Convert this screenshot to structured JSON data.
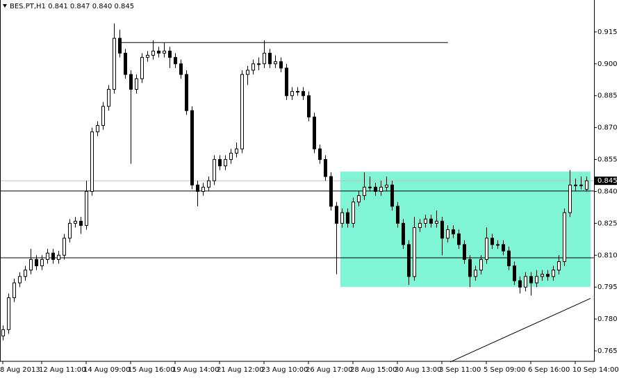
{
  "chart_data": {
    "type": "candlestick",
    "title": "BES.PT,H1  0.841 0.847 0.840 0.845",
    "ylim": [
      0.7601,
      0.93
    ],
    "yticks": [
      0.765,
      {
        "value": 0.78,
        "label": "0.780"
      },
      0.795,
      {
        "value": 0.81,
        "label": "0.810"
      },
      0.825,
      {
        "value": 0.84,
        "label": "0.840"
      },
      0.855,
      {
        "value": 0.87,
        "label": "0.870"
      },
      0.885,
      {
        "value": 0.9,
        "label": "0.900"
      },
      0.915
    ],
    "xlim": [
      -0.5,
      106.375
    ],
    "xticks": [
      {
        "value": 0,
        "label": "8 Aug 2013"
      },
      {
        "value": 7,
        "label": "12 Aug 11:00"
      },
      {
        "value": 15,
        "label": "14 Aug 09:00"
      },
      {
        "value": 23,
        "label": "15 Aug 16:00"
      },
      {
        "value": 31,
        "label": "19 Aug 14:00"
      },
      {
        "value": 39,
        "label": "21 Aug 12:00"
      },
      {
        "value": 47,
        "label": "23 Aug 10:00"
      },
      {
        "value": 55,
        "label": "26 Aug 17:00"
      },
      {
        "value": 63,
        "label": "28 Aug 15:00"
      },
      {
        "value": 71,
        "label": "30 Aug 13:00"
      },
      {
        "value": 79,
        "label": "3 Sep 11:00"
      },
      {
        "value": 87,
        "label": "5 Sep 09:00"
      },
      {
        "value": 95,
        "label": "6 Sep 16:00"
      },
      {
        "value": 103,
        "label": "10 Sep 14:00"
      }
    ],
    "up_color": "#ffffff",
    "down_color": "#000000",
    "wick_color": "#000000",
    "ohlc": [
      [
        0.772,
        0.777,
        0.77,
        0.775
      ],
      [
        0.775,
        0.792,
        0.773,
        0.79
      ],
      [
        0.79,
        0.799,
        0.788,
        0.797
      ],
      [
        0.797,
        0.802,
        0.795,
        0.8
      ],
      [
        0.8,
        0.805,
        0.798,
        0.803
      ],
      [
        0.803,
        0.813,
        0.801,
        0.808
      ],
      [
        0.808,
        0.81,
        0.803,
        0.805
      ],
      [
        0.805,
        0.81,
        0.803,
        0.808
      ],
      [
        0.808,
        0.813,
        0.806,
        0.811
      ],
      [
        0.811,
        0.813,
        0.806,
        0.808
      ],
      [
        0.808,
        0.812,
        0.806,
        0.81
      ],
      [
        0.81,
        0.82,
        0.808,
        0.818
      ],
      [
        0.818,
        0.827,
        0.816,
        0.825
      ],
      [
        0.825,
        0.828,
        0.823,
        0.826
      ],
      [
        0.826,
        0.828,
        0.82,
        0.824
      ],
      [
        0.824,
        0.845,
        0.822,
        0.84
      ],
      [
        0.84,
        0.87,
        0.838,
        0.868
      ],
      [
        0.868,
        0.873,
        0.866,
        0.871
      ],
      [
        0.871,
        0.882,
        0.869,
        0.88
      ],
      [
        0.88,
        0.89,
        0.878,
        0.888
      ],
      [
        0.888,
        0.919,
        0.886,
        0.912
      ],
      [
        0.912,
        0.916,
        0.903,
        0.905
      ],
      [
        0.905,
        0.907,
        0.893,
        0.895
      ],
      [
        0.895,
        0.897,
        0.853,
        0.888
      ],
      [
        0.888,
        0.895,
        0.886,
        0.893
      ],
      [
        0.893,
        0.905,
        0.891,
        0.903
      ],
      [
        0.903,
        0.906,
        0.901,
        0.904
      ],
      [
        0.904,
        0.911,
        0.902,
        0.906
      ],
      [
        0.906,
        0.908,
        0.903,
        0.905
      ],
      [
        0.905,
        0.91,
        0.903,
        0.906
      ],
      [
        0.906,
        0.908,
        0.898,
        0.903
      ],
      [
        0.903,
        0.905,
        0.898,
        0.9
      ],
      [
        0.9,
        0.902,
        0.893,
        0.895
      ],
      [
        0.895,
        0.897,
        0.876,
        0.878
      ],
      [
        0.878,
        0.88,
        0.841,
        0.843
      ],
      [
        0.843,
        0.845,
        0.833,
        0.84
      ],
      [
        0.84,
        0.844,
        0.838,
        0.842
      ],
      [
        0.842,
        0.847,
        0.84,
        0.845
      ],
      [
        0.845,
        0.857,
        0.843,
        0.855
      ],
      [
        0.855,
        0.857,
        0.85,
        0.852
      ],
      [
        0.852,
        0.857,
        0.85,
        0.855
      ],
      [
        0.855,
        0.86,
        0.853,
        0.858
      ],
      [
        0.858,
        0.863,
        0.856,
        0.86
      ],
      [
        0.86,
        0.897,
        0.858,
        0.895
      ],
      [
        0.895,
        0.899,
        0.89,
        0.897
      ],
      [
        0.897,
        0.902,
        0.895,
        0.9
      ],
      [
        0.9,
        0.903,
        0.897,
        0.9
      ],
      [
        0.9,
        0.911,
        0.898,
        0.905
      ],
      [
        0.905,
        0.907,
        0.898,
        0.9
      ],
      [
        0.9,
        0.904,
        0.898,
        0.901
      ],
      [
        0.901,
        0.903,
        0.896,
        0.898
      ],
      [
        0.898,
        0.9,
        0.883,
        0.885
      ],
      [
        0.885,
        0.889,
        0.883,
        0.887
      ],
      [
        0.887,
        0.889,
        0.885,
        0.887
      ],
      [
        0.887,
        0.889,
        0.883,
        0.885
      ],
      [
        0.885,
        0.887,
        0.873,
        0.875
      ],
      [
        0.875,
        0.877,
        0.858,
        0.86
      ],
      [
        0.86,
        0.862,
        0.853,
        0.855
      ],
      [
        0.855,
        0.857,
        0.845,
        0.847
      ],
      [
        0.847,
        0.849,
        0.831,
        0.833
      ],
      [
        0.833,
        0.835,
        0.801,
        0.825
      ],
      [
        0.825,
        0.832,
        0.823,
        0.83
      ],
      [
        0.83,
        0.832,
        0.823,
        0.825
      ],
      [
        0.825,
        0.837,
        0.823,
        0.835
      ],
      [
        0.835,
        0.84,
        0.833,
        0.838
      ],
      [
        0.838,
        0.849,
        0.836,
        0.842
      ],
      [
        0.842,
        0.847,
        0.84,
        0.842
      ],
      [
        0.842,
        0.844,
        0.838,
        0.84
      ],
      [
        0.84,
        0.845,
        0.838,
        0.842
      ],
      [
        0.842,
        0.847,
        0.84,
        0.843
      ],
      [
        0.843,
        0.845,
        0.831,
        0.833
      ],
      [
        0.833,
        0.835,
        0.823,
        0.825
      ],
      [
        0.825,
        0.827,
        0.813,
        0.815
      ],
      [
        0.815,
        0.817,
        0.796,
        0.8
      ],
      [
        0.8,
        0.828,
        0.798,
        0.823
      ],
      [
        0.823,
        0.827,
        0.821,
        0.825
      ],
      [
        0.825,
        0.829,
        0.823,
        0.827
      ],
      [
        0.827,
        0.829,
        0.823,
        0.825
      ],
      [
        0.825,
        0.831,
        0.823,
        0.826
      ],
      [
        0.826,
        0.828,
        0.81,
        0.818
      ],
      [
        0.818,
        0.824,
        0.816,
        0.822
      ],
      [
        0.822,
        0.824,
        0.818,
        0.82
      ],
      [
        0.82,
        0.822,
        0.813,
        0.815
      ],
      [
        0.815,
        0.817,
        0.806,
        0.808
      ],
      [
        0.808,
        0.81,
        0.795,
        0.8
      ],
      [
        0.8,
        0.805,
        0.798,
        0.803
      ],
      [
        0.803,
        0.81,
        0.801,
        0.808
      ],
      [
        0.808,
        0.823,
        0.806,
        0.818
      ],
      [
        0.818,
        0.82,
        0.813,
        0.815
      ],
      [
        0.815,
        0.817,
        0.813,
        0.815
      ],
      [
        0.815,
        0.817,
        0.81,
        0.812
      ],
      [
        0.812,
        0.814,
        0.803,
        0.805
      ],
      [
        0.805,
        0.807,
        0.796,
        0.798
      ],
      [
        0.798,
        0.8,
        0.792,
        0.795
      ],
      [
        0.795,
        0.802,
        0.793,
        0.8
      ],
      [
        0.8,
        0.802,
        0.791,
        0.797
      ],
      [
        0.797,
        0.803,
        0.795,
        0.8
      ],
      [
        0.8,
        0.803,
        0.798,
        0.801
      ],
      [
        0.801,
        0.803,
        0.798,
        0.8
      ],
      [
        0.8,
        0.805,
        0.798,
        0.803
      ],
      [
        0.803,
        0.81,
        0.801,
        0.807
      ],
      [
        0.807,
        0.832,
        0.805,
        0.83
      ],
      [
        0.83,
        0.85,
        0.828,
        0.843
      ],
      [
        0.843,
        0.846,
        0.84,
        0.843
      ],
      [
        0.843,
        0.847,
        0.841,
        0.843
      ],
      [
        0.841,
        0.847,
        0.84,
        0.845
      ]
    ],
    "rectangle": {
      "x": [
        60.75,
        105.75
      ],
      "y": [
        0.7951,
        0.8493
      ],
      "color": "#80f5d6"
    },
    "hlines": [
      {
        "value": 0.91,
        "x": [
          20.75,
          80.1
        ]
      },
      {
        "value": 0.8402
      },
      {
        "value": 0.8088
      }
    ],
    "trendline": {
      "x": [
        80.5,
        105.75
      ],
      "y": [
        0.7598,
        0.7897
      ]
    },
    "bid": {
      "value": 0.845,
      "label": "0.845",
      "color": "#c0c0c0"
    }
  }
}
